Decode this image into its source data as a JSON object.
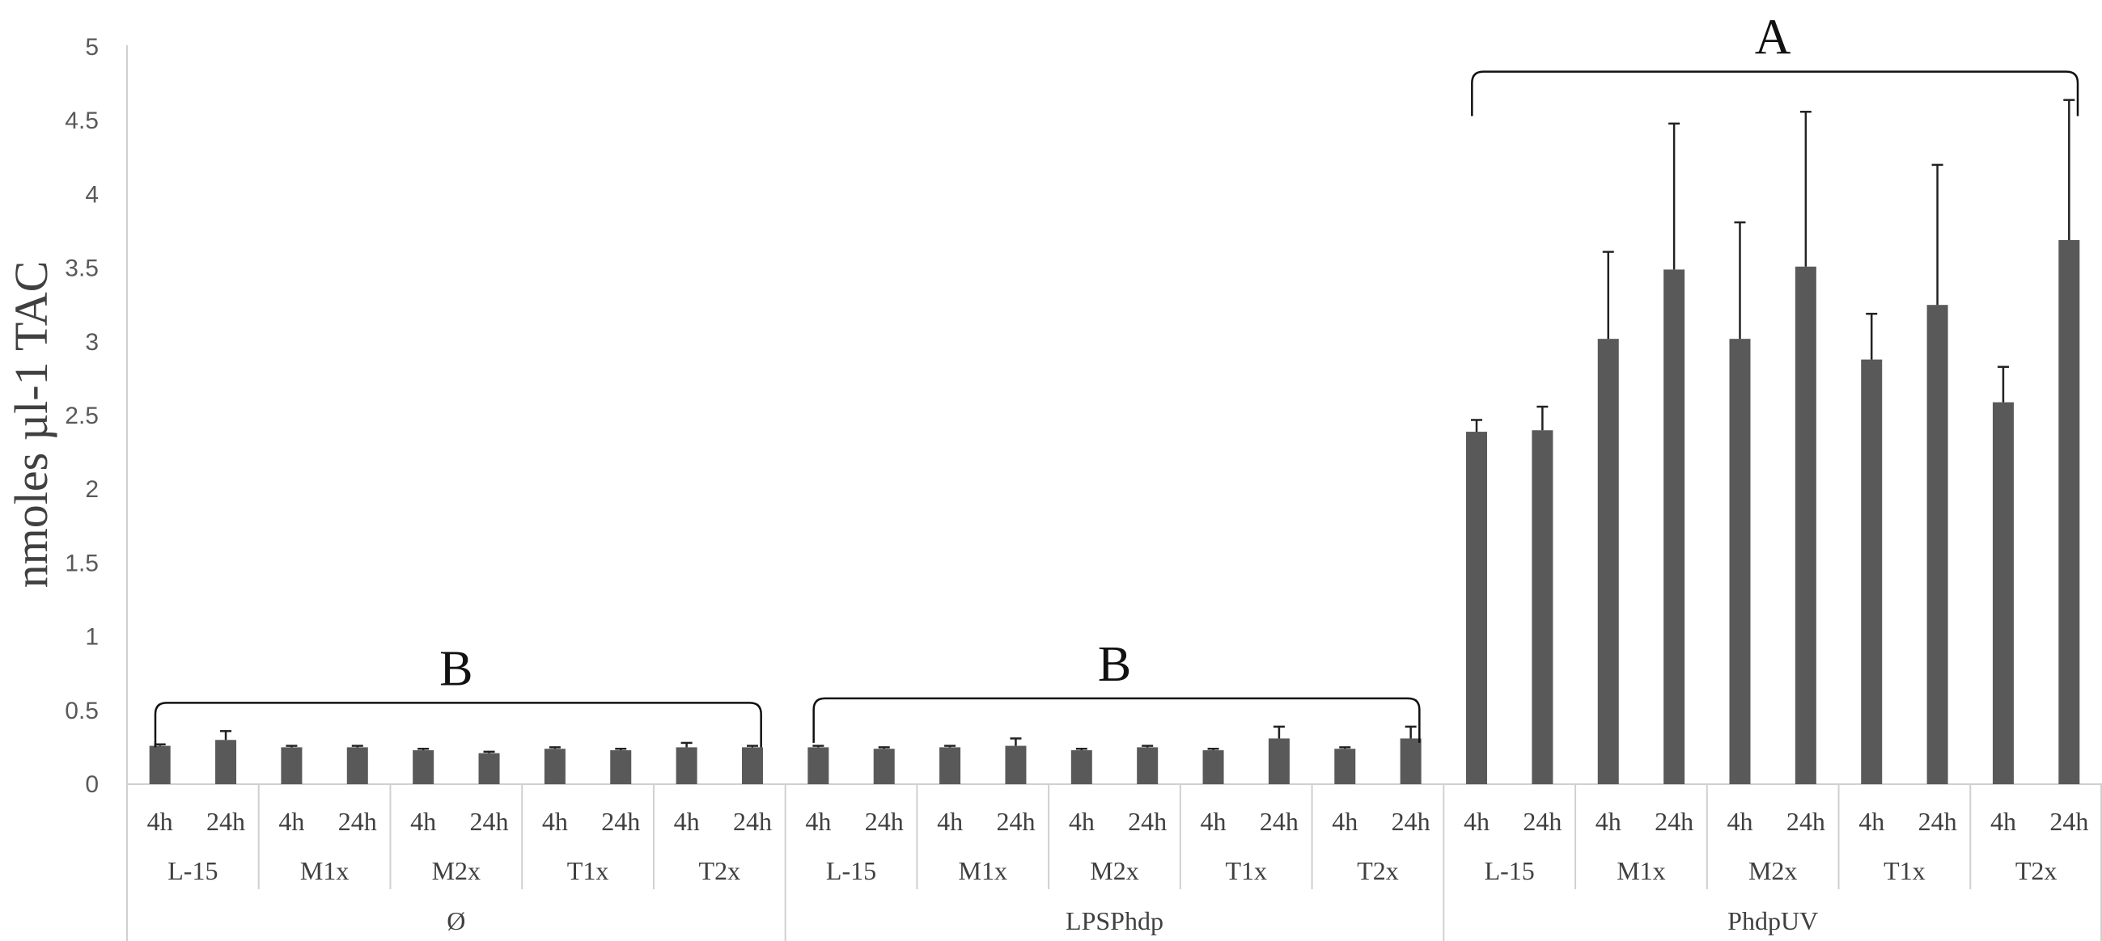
{
  "chart_data": {
    "type": "bar",
    "ylabel": "nmoles µl-1 TAC",
    "ylim": [
      0,
      5
    ],
    "yticks": [
      0,
      0.5,
      1,
      1.5,
      2,
      2.5,
      3,
      3.5,
      4,
      4.5,
      5
    ],
    "ytick_labels": [
      "0",
      "0.5",
      "1",
      "1.5",
      "2",
      "2.5",
      "3",
      "3.5",
      "4",
      "4.5",
      "5"
    ],
    "grid": false,
    "bar_color": "#595959",
    "groups": [
      {
        "label": "Ø",
        "significance": "B",
        "subgroups": [
          {
            "label": "L-15",
            "bars": [
              {
                "time": "4h",
                "value": 0.26,
                "error": 0.01
              },
              {
                "time": "24h",
                "value": 0.3,
                "error": 0.06
              }
            ]
          },
          {
            "label": "M1x",
            "bars": [
              {
                "time": "4h",
                "value": 0.25,
                "error": 0.01
              },
              {
                "time": "24h",
                "value": 0.25,
                "error": 0.01
              }
            ]
          },
          {
            "label": "M2x",
            "bars": [
              {
                "time": "4h",
                "value": 0.23,
                "error": 0.01
              },
              {
                "time": "24h",
                "value": 0.21,
                "error": 0.01
              }
            ]
          },
          {
            "label": "T1x",
            "bars": [
              {
                "time": "4h",
                "value": 0.24,
                "error": 0.01
              },
              {
                "time": "24h",
                "value": 0.23,
                "error": 0.01
              }
            ]
          },
          {
            "label": "T2x",
            "bars": [
              {
                "time": "4h",
                "value": 0.25,
                "error": 0.03
              },
              {
                "time": "24h",
                "value": 0.25,
                "error": 0.01
              }
            ]
          }
        ]
      },
      {
        "label": "LPSPhdp",
        "significance": "B",
        "subgroups": [
          {
            "label": "L-15",
            "bars": [
              {
                "time": "4h",
                "value": 0.25,
                "error": 0.01
              },
              {
                "time": "24h",
                "value": 0.24,
                "error": 0.01
              }
            ]
          },
          {
            "label": "M1x",
            "bars": [
              {
                "time": "4h",
                "value": 0.25,
                "error": 0.01
              },
              {
                "time": "24h",
                "value": 0.26,
                "error": 0.05
              }
            ]
          },
          {
            "label": "M2x",
            "bars": [
              {
                "time": "4h",
                "value": 0.23,
                "error": 0.01
              },
              {
                "time": "24h",
                "value": 0.25,
                "error": 0.01
              }
            ]
          },
          {
            "label": "T1x",
            "bars": [
              {
                "time": "4h",
                "value": 0.23,
                "error": 0.01
              },
              {
                "time": "24h",
                "value": 0.31,
                "error": 0.08
              }
            ]
          },
          {
            "label": "T2x",
            "bars": [
              {
                "time": "4h",
                "value": 0.24,
                "error": 0.01
              },
              {
                "time": "24h",
                "value": 0.31,
                "error": 0.08
              }
            ]
          }
        ]
      },
      {
        "label": "PhdpUV",
        "significance": "A",
        "subgroups": [
          {
            "label": "L-15",
            "bars": [
              {
                "time": "4h",
                "value": 2.39,
                "error": 0.08
              },
              {
                "time": "24h",
                "value": 2.4,
                "error": 0.16
              }
            ]
          },
          {
            "label": "M1x",
            "bars": [
              {
                "time": "4h",
                "value": 3.02,
                "error": 0.59
              },
              {
                "time": "24h",
                "value": 3.49,
                "error": 0.99
              }
            ]
          },
          {
            "label": "M2x",
            "bars": [
              {
                "time": "4h",
                "value": 3.02,
                "error": 0.79
              },
              {
                "time": "24h",
                "value": 3.51,
                "error": 1.05
              }
            ]
          },
          {
            "label": "T1x",
            "bars": [
              {
                "time": "4h",
                "value": 2.88,
                "error": 0.31
              },
              {
                "time": "24h",
                "value": 3.25,
                "error": 0.95
              }
            ]
          },
          {
            "label": "T2x",
            "bars": [
              {
                "time": "4h",
                "value": 2.59,
                "error": 0.24
              },
              {
                "time": "24h",
                "value": 3.69,
                "error": 0.95
              }
            ]
          }
        ]
      }
    ]
  }
}
